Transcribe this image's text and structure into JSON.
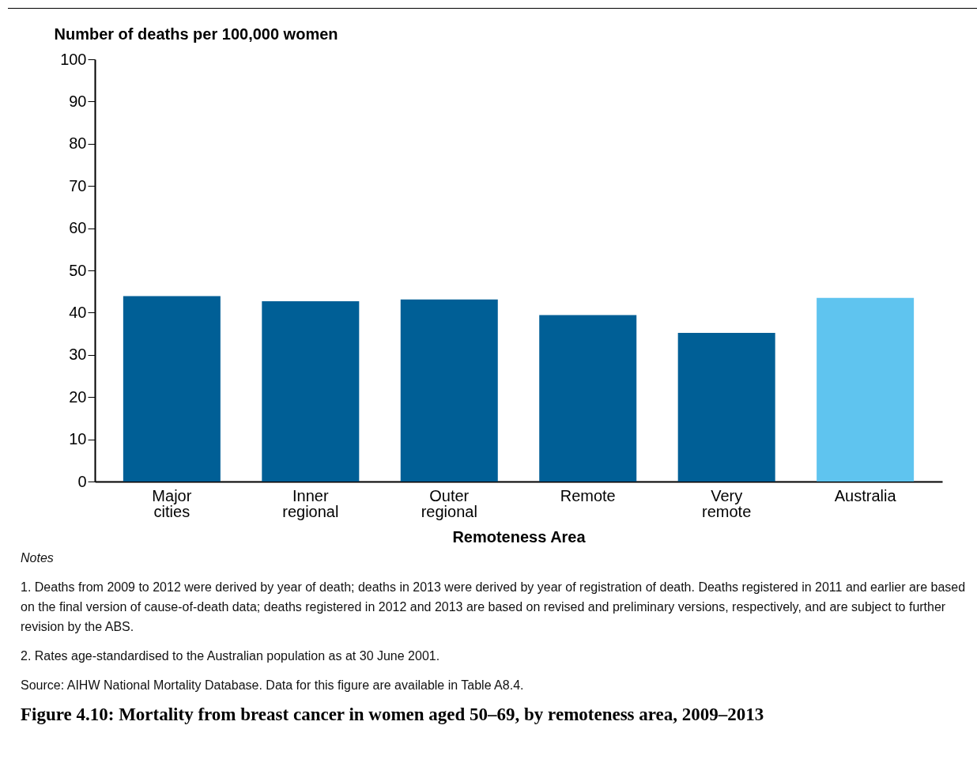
{
  "chart_data": {
    "type": "bar",
    "title": "Figure 4.10: Mortality from breast cancer in women aged 50–69, by remoteness area, 2009–2013",
    "xlabel": "Remoteness Area",
    "ylabel": "Number of deaths per 100,000 women",
    "categories": [
      "Major cities",
      "Inner regional",
      "Outer regional",
      "Remote",
      "Very remote",
      "Australia"
    ],
    "values": [
      43.9,
      42.7,
      43.1,
      39.4,
      35.2,
      43.5
    ],
    "colors": [
      "#005f96",
      "#005f96",
      "#005f96",
      "#005f96",
      "#005f96",
      "#5fc4ef"
    ],
    "ylim": [
      0,
      100
    ],
    "yticks": [
      0,
      10,
      20,
      30,
      40,
      50,
      60,
      70,
      80,
      90,
      100
    ],
    "grid": false,
    "annotations": [
      "Notes",
      "1. Deaths from 2009 to 2012 were derived by year of death; deaths in 2013 were derived by year of registration of death. Deaths registered in 2011 and earlier are based on the final version of cause-of-death data; deaths registered in 2012 and 2013 are based on revised and preliminary versions, respectively, and are subject to further revision by the ABS.",
      "2. Rates age-standardised to the Australian population as at 30 June 2001.",
      "Source: AIHW National Mortality Database. Data for this figure are available in Table A8.4."
    ]
  }
}
